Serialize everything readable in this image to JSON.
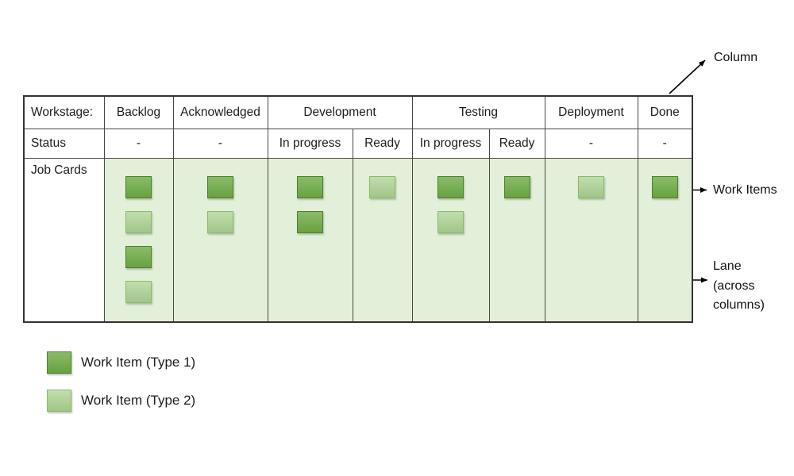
{
  "board": {
    "corner_label": "Workstage:",
    "status_label": "Status",
    "cards_label": "Job Cards",
    "stages": [
      {
        "name": "Backlog",
        "statuses": [
          {
            "status": "-",
            "items": [
              1,
              2,
              1,
              2
            ]
          }
        ]
      },
      {
        "name": "Acknowledged",
        "statuses": [
          {
            "status": "-",
            "items": [
              1,
              2
            ]
          }
        ]
      },
      {
        "name": "Development",
        "statuses": [
          {
            "status": "In progress",
            "items": [
              1,
              1
            ]
          },
          {
            "status": "Ready",
            "items": [
              2
            ]
          }
        ]
      },
      {
        "name": "Testing",
        "statuses": [
          {
            "status": "In progress",
            "items": [
              1,
              2
            ]
          },
          {
            "status": "Ready",
            "items": [
              1
            ]
          }
        ]
      },
      {
        "name": "Deployment",
        "statuses": [
          {
            "status": "-",
            "items": [
              2
            ]
          }
        ]
      },
      {
        "name": "Done",
        "statuses": [
          {
            "status": "-",
            "items": [
              1
            ]
          }
        ]
      }
    ]
  },
  "annotations": {
    "column_label": "Column",
    "work_items_label": "Work Items",
    "lane_label": "Lane\n(across\ncolumns)"
  },
  "legend": {
    "items": [
      {
        "type": 1,
        "label": "Work Item (Type 1)"
      },
      {
        "type": 2,
        "label": "Work Item (Type 2)"
      }
    ]
  },
  "colors": {
    "work_item_type1": "#70AD47",
    "work_item_type1_border": "#507E32",
    "work_item_type2": "#A9D18E",
    "work_item_type2_border": "#8CBA6B",
    "lane_background": "#E2F0D9",
    "table_border": "#474747",
    "arrow": "#000000",
    "text": "#1C1C1C"
  }
}
